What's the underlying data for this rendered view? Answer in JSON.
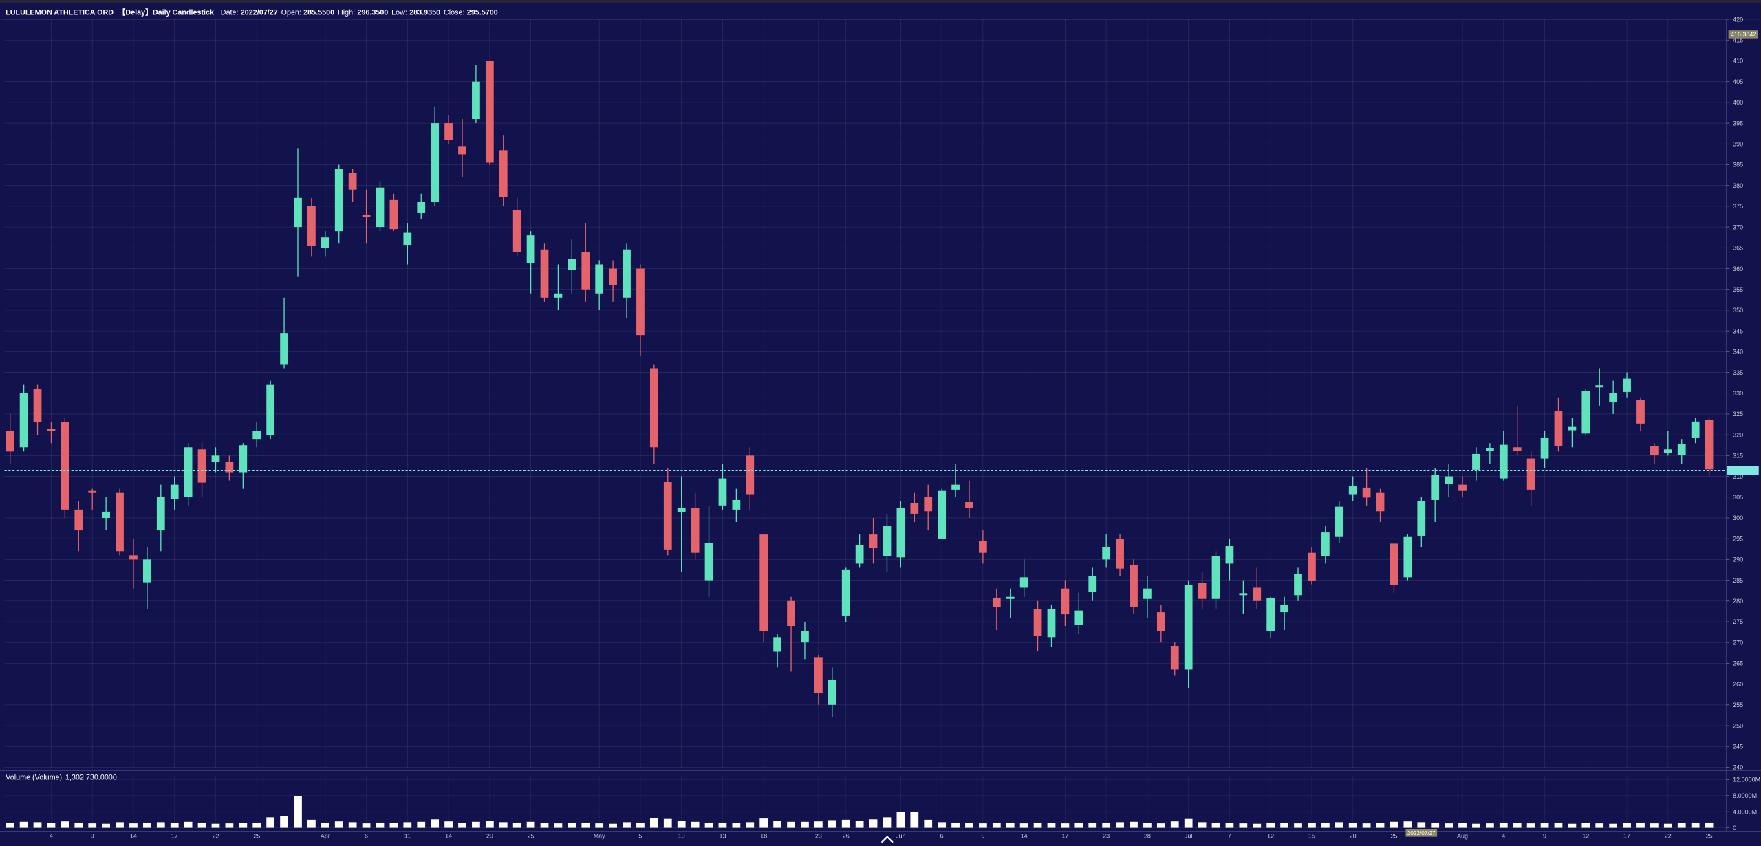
{
  "chart_data": {
    "type": "candlestick",
    "title": "LULULEMON ATHLETICA ORD",
    "subtitle": "【Delay】Daily Candlestick",
    "info": [
      {
        "label": "Date:",
        "value": "2022/07/27"
      },
      {
        "label": "Open:",
        "value": "285.5500"
      },
      {
        "label": "High:",
        "value": "296.3500"
      },
      {
        "label": "Low:",
        "value": "283.9350"
      },
      {
        "label": "Close:",
        "value": "295.5700"
      }
    ],
    "up_color": "#5fe3bd",
    "down_color": "#e5636b",
    "grid": true,
    "categories": [
      null,
      null,
      null,
      "4",
      null,
      null,
      "9",
      null,
      null,
      "14",
      null,
      null,
      "17",
      null,
      null,
      "22",
      null,
      null,
      "25",
      null,
      null,
      null,
      null,
      "Apr",
      null,
      null,
      "6",
      null,
      null,
      "11",
      null,
      null,
      "14",
      null,
      null,
      "20",
      null,
      null,
      "25",
      null,
      null,
      null,
      null,
      "May",
      null,
      null,
      "5",
      null,
      null,
      "10",
      null,
      null,
      "13",
      null,
      null,
      "18",
      null,
      null,
      null,
      "23",
      null,
      "26",
      null,
      null,
      null,
      "Jun",
      null,
      null,
      "6",
      null,
      null,
      "9",
      null,
      null,
      "14",
      null,
      null,
      "17",
      null,
      null,
      "23",
      null,
      null,
      "28",
      null,
      null,
      "Jul",
      null,
      null,
      "7",
      null,
      null,
      "12",
      null,
      null,
      "15",
      null,
      null,
      "20",
      null,
      null,
      "25",
      null,
      null,
      null,
      null,
      "Aug",
      null,
      null,
      "4",
      null,
      null,
      "9",
      null,
      null,
      "12",
      null,
      null,
      "17",
      null,
      null,
      "22",
      null,
      null,
      "25"
    ],
    "open": [
      321,
      317,
      331,
      321.5,
      323,
      302,
      306.5,
      300,
      306,
      291,
      284.5,
      297,
      304.5,
      305,
      316.5,
      313.5,
      313.5,
      311,
      319,
      320,
      337,
      370,
      375,
      365,
      369,
      383,
      373,
      370,
      376.5,
      365.7,
      373.5,
      376,
      395,
      389.5,
      396,
      410,
      388.5,
      374,
      361.4,
      364.6,
      353,
      359.7,
      364,
      354,
      360,
      353,
      360,
      336,
      308.6,
      301.4,
      302.4,
      285,
      303,
      302,
      315,
      296,
      267.8,
      280,
      270,
      266.5,
      255,
      276.5,
      289,
      296,
      290.8,
      290.5,
      303.5,
      305,
      295,
      306.8,
      303.8,
      294.5,
      280.8,
      280.5,
      283.2,
      278,
      271.3,
      283,
      274.3,
      282.2,
      290,
      295,
      288.6,
      280.5,
      277.3,
      269.2,
      263.5,
      284.3,
      280.5,
      289,
      281.4,
      283.2,
      272.7,
      277.3,
      281.4,
      291.6,
      290.8,
      295.4,
      305.7,
      307.3,
      306,
      293.8,
      285.7,
      295.7,
      304.3,
      308.1,
      308,
      311.6,
      316.2,
      309.5,
      317,
      314.3,
      314.3,
      325.7,
      321.1,
      320.3,
      331.4,
      327.8,
      330.3,
      328.4,
      317.3,
      315.7,
      315.1,
      319.2,
      323.5
    ],
    "high": [
      325,
      332,
      332,
      323,
      324,
      304,
      307,
      305,
      307,
      295,
      293,
      308,
      310,
      318,
      318,
      317,
      315,
      318,
      323,
      333,
      353,
      389,
      377,
      369,
      385,
      384,
      379,
      381,
      378,
      371,
      378,
      399,
      397,
      396,
      409,
      410,
      392,
      377,
      369,
      366,
      361,
      367,
      371,
      362,
      362,
      366,
      361,
      337,
      312,
      310,
      306,
      303,
      313,
      307,
      317,
      296,
      272,
      281,
      275,
      267,
      264,
      288,
      296,
      300,
      301,
      304,
      306,
      308,
      307,
      313,
      309,
      297,
      283,
      283,
      290,
      280,
      279,
      285,
      282,
      288,
      296,
      296,
      290,
      286,
      279,
      270,
      285,
      287,
      292,
      295,
      285,
      288,
      281,
      281,
      288,
      293,
      298,
      304,
      310,
      312,
      307,
      294,
      296,
      305,
      312,
      313,
      310,
      317,
      318,
      321,
      327,
      316,
      321,
      329,
      324,
      331,
      336,
      333,
      335,
      329,
      318,
      321,
      319,
      324,
      324
    ],
    "low": [
      313,
      316,
      320,
      318,
      300,
      292,
      302,
      297,
      291,
      283,
      278,
      292,
      302,
      303,
      305,
      311,
      309,
      307,
      317,
      319,
      336,
      358,
      363,
      363,
      366,
      376,
      366,
      369,
      369,
      361,
      372,
      375,
      390,
      382,
      395,
      385,
      375,
      363,
      354,
      352,
      350,
      354,
      352,
      350,
      352,
      348,
      339,
      313,
      291,
      287,
      290,
      281,
      302,
      299,
      302,
      270,
      264,
      263,
      266,
      255,
      252,
      275,
      288,
      289,
      287,
      288,
      299,
      297,
      295,
      305,
      300,
      289,
      273,
      276,
      281,
      268,
      269,
      274,
      272,
      280,
      288,
      286,
      277,
      276,
      270,
      262,
      259,
      278,
      278,
      285,
      277,
      278,
      271,
      273,
      280,
      284,
      289,
      294,
      304,
      303,
      299,
      282,
      285,
      293,
      299,
      305,
      305,
      309,
      313,
      309,
      315,
      303,
      312,
      316,
      317,
      320,
      327,
      325,
      329,
      321,
      313,
      315,
      313,
      318,
      310
    ],
    "close": [
      316,
      330,
      323,
      321,
      302,
      297,
      306,
      301.5,
      292,
      290,
      290,
      305,
      308,
      317,
      308.5,
      315,
      311,
      317.5,
      321,
      332,
      344.5,
      377,
      365.5,
      367.5,
      384,
      379,
      372.5,
      379.5,
      369.5,
      368.6,
      376,
      395,
      391,
      387.5,
      405,
      385.5,
      377.3,
      364,
      368,
      353,
      354,
      362.4,
      355,
      361,
      356,
      364.6,
      344,
      317,
      292.4,
      302.4,
      291.6,
      294,
      309.5,
      304.3,
      305.7,
      272.7,
      271.3,
      274,
      272.7,
      257.8,
      261,
      287.6,
      293.5,
      292.7,
      298,
      302.4,
      301,
      301.6,
      306.5,
      308,
      302.4,
      291.6,
      278.6,
      281,
      285.7,
      271.6,
      278,
      276.8,
      277.7,
      286,
      293,
      287.8,
      278.6,
      283,
      272.7,
      263.5,
      283.8,
      280.5,
      290.8,
      293.2,
      281.9,
      280,
      280.8,
      279,
      286.5,
      284.9,
      296.5,
      302.7,
      307.6,
      304.9,
      301.6,
      283.8,
      295.4,
      304,
      310.3,
      310,
      306.5,
      315.4,
      316.8,
      317.6,
      316.2,
      306.8,
      319.2,
      317.3,
      321.9,
      330.5,
      331.9,
      330,
      333.5,
      322.7,
      315.1,
      316.5,
      317.8,
      323.2,
      311.7
    ],
    "ylim": [
      240,
      420
    ],
    "yticks": [
      240,
      245,
      250,
      255,
      260,
      265,
      270,
      275,
      280,
      285,
      290,
      295,
      300,
      305,
      310,
      315,
      320,
      325,
      330,
      335,
      340,
      345,
      350,
      355,
      360,
      365,
      370,
      375,
      380,
      385,
      390,
      395,
      400,
      405,
      410,
      415,
      420
    ],
    "last_price": 311.35,
    "last_price_color": "#7fe8e0",
    "crosshair": {
      "price": 416.3842,
      "date": "2022/07/27"
    },
    "volume_title": "Volume (Volume)",
    "volume_value": "1,302,730.0000",
    "volume_color": "#ffffff",
    "volume": [
      1300000,
      1500000,
      1400000,
      1200000,
      1600000,
      1300000,
      1100000,
      1000000,
      1400000,
      1100000,
      1300000,
      1400000,
      1200000,
      1500000,
      1300000,
      1000000,
      1100000,
      1200000,
      1300000,
      2600000,
      2900000,
      7800000,
      2000000,
      1300000,
      1600000,
      1400000,
      1100000,
      1300000,
      1200000,
      1400000,
      1500000,
      2100000,
      1600000,
      1200000,
      1500000,
      1800000,
      1400000,
      1300000,
      1500000,
      1200000,
      1100000,
      1200000,
      1300000,
      1100000,
      1000000,
      1400000,
      1300000,
      2400000,
      2200000,
      1800000,
      1500000,
      1300000,
      1300000,
      1200000,
      1400000,
      2300000,
      1700000,
      1500000,
      1500000,
      1600000,
      1900000,
      2000000,
      1800000,
      2100000,
      2600000,
      4000000,
      3900000,
      2000000,
      1400000,
      1300000,
      1200000,
      1100000,
      1300000,
      1200000,
      1100000,
      1300000,
      1200000,
      1100000,
      1300000,
      1200000,
      1300000,
      1400000,
      1500000,
      1200000,
      1100000,
      1600000,
      2200000,
      1400000,
      1300000,
      1200000,
      1100000,
      1000000,
      1300000,
      1200000,
      1100000,
      1200000,
      1300000,
      1400000,
      1200000,
      1100000,
      1200000,
      1500000,
      1600000,
      1400000,
      1300000,
      1100000,
      1200000,
      1000000,
      1100000,
      1300000,
      1200000,
      1100000,
      1200000,
      1300000,
      1000000,
      1200000,
      1100000,
      1000000,
      1200000,
      1300000,
      1100000,
      1000000,
      1200000,
      1300000,
      1302730
    ],
    "vlim": [
      0,
      12000000
    ],
    "vticks": [
      {
        "value": 12000000,
        "label": "12.0000M"
      },
      {
        "value": 8000000,
        "label": "8.0000M"
      },
      {
        "value": 4000000,
        "label": "4.0000M"
      },
      0
    ]
  }
}
